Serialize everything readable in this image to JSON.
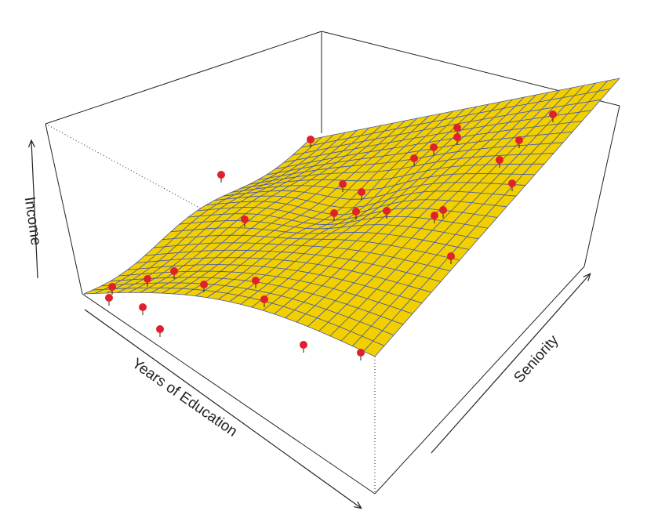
{
  "chart_data": {
    "type": "surface",
    "xlabel": "Years of Education",
    "ylabel": "Seniority",
    "zlabel": "Income",
    "surface_color": "#f2d000",
    "mesh_color": "#4a5aa8",
    "point_color": "#e0202a"
  }
}
